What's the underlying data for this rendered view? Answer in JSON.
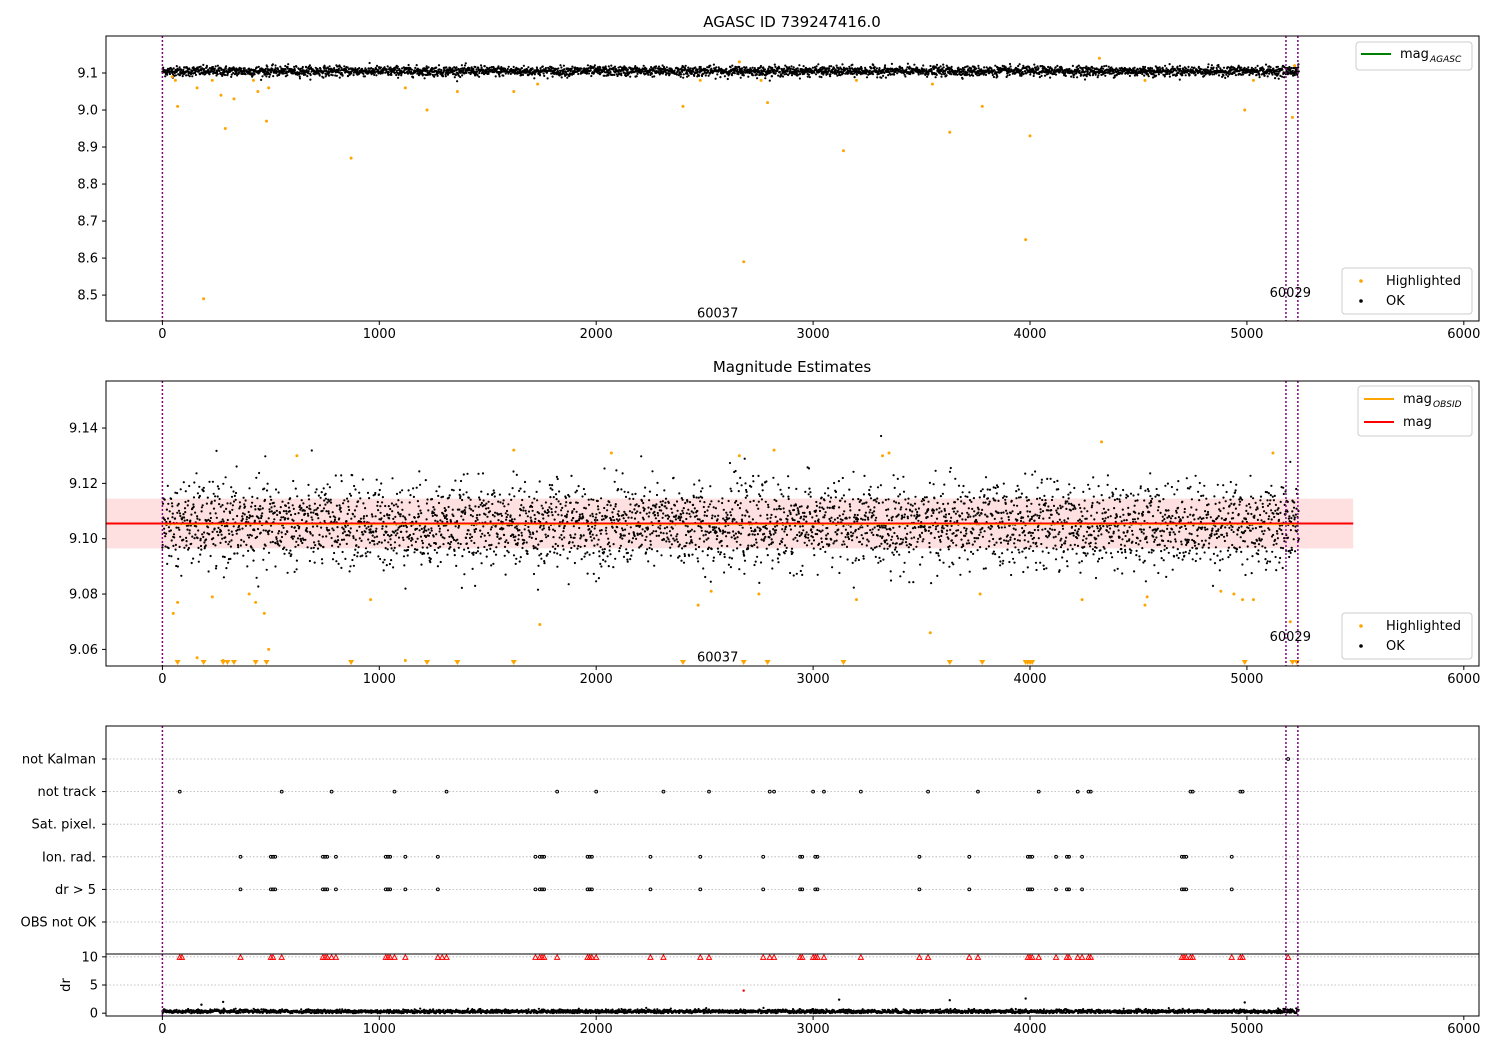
{
  "colors": {
    "ok": "#000000",
    "highlighted": "#ffa500",
    "mag_agasc": "#008000",
    "mag_obsid": "#ffa500",
    "mag": "#ff0000",
    "band_fill": "#ff0000",
    "obs_marker": "#800080",
    "flag_dr10": "#ff0000",
    "grid": "#b0b0b0"
  },
  "chart_data": [
    {
      "type": "scatter",
      "title": "AGASC ID 739247416.0",
      "xlabel": "",
      "ylabel": "",
      "xlim": [
        -260,
        6070
      ],
      "ylim": [
        8.43,
        9.2
      ],
      "xticks": [
        0,
        1000,
        2000,
        3000,
        4000,
        5000,
        6000
      ],
      "yticks": [
        8.5,
        8.6,
        8.7,
        8.8,
        8.9,
        9.0,
        9.1
      ],
      "ytick_labels": [
        "8.5",
        "8.6",
        "8.7",
        "8.8",
        "8.9",
        "9.0",
        "9.1"
      ],
      "legend": [
        {
          "label": "mag",
          "sub": "AGASC",
          "kind": "line",
          "color": "#008000",
          "placement": "top-right"
        },
        {
          "label": "Highlighted",
          "kind": "dot",
          "color": "#ffa500",
          "placement": "lower-right"
        },
        {
          "label": "OK",
          "kind": "dot",
          "color": "#000000",
          "placement": "lower-right"
        }
      ],
      "ok_band": {
        "x_range": [
          0,
          5240
        ],
        "center": 9.105,
        "spread": 0.015
      },
      "obs_boundaries": [
        0,
        5180,
        5235
      ],
      "annotations": [
        {
          "text": "60037",
          "x": 2560,
          "y": 8.45
        },
        {
          "text": "60029",
          "x": 5200,
          "y": 8.505
        }
      ],
      "highlighted_points": [
        [
          45,
          9.09
        ],
        [
          60,
          9.08
        ],
        [
          70,
          9.01
        ],
        [
          160,
          9.06
        ],
        [
          190,
          8.49
        ],
        [
          230,
          9.08
        ],
        [
          270,
          9.04
        ],
        [
          290,
          8.95
        ],
        [
          330,
          9.03
        ],
        [
          420,
          9.08
        ],
        [
          440,
          9.05
        ],
        [
          480,
          8.97
        ],
        [
          490,
          9.06
        ],
        [
          870,
          8.87
        ],
        [
          1120,
          9.06
        ],
        [
          1220,
          9.0
        ],
        [
          1360,
          9.05
        ],
        [
          1620,
          9.05
        ],
        [
          1730,
          9.07
        ],
        [
          2400,
          9.01
        ],
        [
          2480,
          9.08
        ],
        [
          2660,
          9.13
        ],
        [
          2680,
          8.59
        ],
        [
          2760,
          9.08
        ],
        [
          2790,
          9.02
        ],
        [
          3140,
          8.89
        ],
        [
          3200,
          9.08
        ],
        [
          3550,
          9.07
        ],
        [
          3630,
          8.94
        ],
        [
          3780,
          9.01
        ],
        [
          3980,
          8.65
        ],
        [
          4000,
          8.93
        ],
        [
          4320,
          9.14
        ],
        [
          4530,
          9.08
        ],
        [
          4990,
          9.0
        ],
        [
          5030,
          9.08
        ],
        [
          5210,
          8.98
        ],
        [
          5220,
          9.12
        ]
      ]
    },
    {
      "type": "scatter",
      "title": "Magnitude Estimates",
      "xlabel": "",
      "ylabel": "",
      "xlim": [
        -260,
        6070
      ],
      "ylim": [
        9.054,
        9.157
      ],
      "xticks": [
        0,
        1000,
        2000,
        3000,
        4000,
        5000,
        6000
      ],
      "yticks": [
        9.06,
        9.08,
        9.1,
        9.12,
        9.14
      ],
      "ytick_labels": [
        "9.06",
        "9.08",
        "9.10",
        "9.12",
        "9.14"
      ],
      "legend": [
        {
          "label": "mag",
          "sub": "OBSID",
          "kind": "line",
          "color": "#ffa500",
          "placement": "top-right"
        },
        {
          "label": "mag",
          "sub": "",
          "kind": "line",
          "color": "#ff0000",
          "placement": "top-right"
        },
        {
          "label": "Highlighted",
          "kind": "dot",
          "color": "#ffa500",
          "placement": "lower-right"
        },
        {
          "label": "OK",
          "kind": "dot",
          "color": "#000000",
          "placement": "lower-right"
        }
      ],
      "mag_line": {
        "x_range": [
          -260,
          5490
        ],
        "value": 9.1055
      },
      "mag_band": {
        "x_range": [
          -260,
          5490
        ],
        "low": 9.0965,
        "high": 9.1145
      },
      "mag_obsid_line": {
        "x_range": [
          0,
          5240
        ],
        "value": 9.1055
      },
      "ok_band": {
        "x_range": [
          0,
          5240
        ],
        "center": 9.105,
        "spread": 0.01
      },
      "obs_boundaries": [
        0,
        5180,
        5235
      ],
      "annotations": [
        {
          "text": "60037",
          "x": 2560,
          "y": 9.057
        },
        {
          "text": "60029",
          "x": 5200,
          "y": 9.0645
        }
      ],
      "highlighted_points": [
        [
          50,
          9.073
        ],
        [
          70,
          9.077
        ],
        [
          160,
          9.057
        ],
        [
          230,
          9.079
        ],
        [
          280,
          9.056
        ],
        [
          400,
          9.08
        ],
        [
          430,
          9.077
        ],
        [
          470,
          9.073
        ],
        [
          490,
          9.06
        ],
        [
          620,
          9.13
        ],
        [
          960,
          9.078
        ],
        [
          1120,
          9.056
        ],
        [
          1620,
          9.132
        ],
        [
          1740,
          9.069
        ],
        [
          2070,
          9.131
        ],
        [
          2470,
          9.076
        ],
        [
          2530,
          9.081
        ],
        [
          2660,
          9.13
        ],
        [
          2750,
          9.08
        ],
        [
          2820,
          9.132
        ],
        [
          3200,
          9.078
        ],
        [
          3320,
          9.13
        ],
        [
          3350,
          9.131
        ],
        [
          3540,
          9.066
        ],
        [
          3770,
          9.08
        ],
        [
          4240,
          9.078
        ],
        [
          4330,
          9.135
        ],
        [
          4530,
          9.076
        ],
        [
          4540,
          9.079
        ],
        [
          4880,
          9.081
        ],
        [
          4940,
          9.08
        ],
        [
          4980,
          9.078
        ],
        [
          5030,
          9.078
        ],
        [
          5120,
          9.131
        ],
        [
          5200,
          9.07
        ]
      ],
      "below_range_markers": [
        70,
        190,
        280,
        300,
        330,
        430,
        480,
        870,
        1220,
        1360,
        1620,
        2400,
        2680,
        2790,
        3140,
        3630,
        3780,
        3980,
        3990,
        4000,
        4010,
        4990,
        5210,
        5230
      ]
    },
    {
      "type": "scatter",
      "title": "",
      "xlabel": "",
      "ylabel": "",
      "xlim": [
        -260,
        6070
      ],
      "categories": [
        "not Kalman",
        "not track",
        "Sat. pixel.",
        "Ion. rad.",
        "dr > 5",
        "OBS not OK"
      ],
      "obs_boundaries": [
        0,
        5180,
        5235
      ],
      "flag_points": {
        "not Kalman": [
          5190
        ],
        "not track": [
          80,
          550,
          780,
          1070,
          1310,
          1820,
          2000,
          2310,
          2520,
          2800,
          2820,
          3000,
          3050,
          3220,
          3530,
          3760,
          4040,
          4220,
          4270,
          4280,
          4740,
          4750,
          4970,
          4980
        ],
        "Sat. pixel.": [],
        "Ion. rad.": [
          360,
          500,
          510,
          520,
          740,
          750,
          760,
          800,
          1030,
          1040,
          1050,
          1120,
          1270,
          1720,
          1740,
          1750,
          1760,
          1960,
          1970,
          1980,
          2250,
          2480,
          2770,
          2940,
          2950,
          3010,
          3020,
          3490,
          3720,
          3990,
          4000,
          4010,
          4120,
          4170,
          4180,
          4240,
          4700,
          4710,
          4720,
          4930
        ],
        "dr > 5": [
          360,
          500,
          510,
          520,
          740,
          750,
          760,
          800,
          1030,
          1040,
          1050,
          1120,
          1270,
          1720,
          1740,
          1750,
          1760,
          1960,
          1970,
          1980,
          2250,
          2480,
          2770,
          2940,
          2950,
          3010,
          3020,
          3490,
          3720,
          3990,
          4000,
          4010,
          4120,
          4170,
          4180,
          4240,
          4700,
          4710,
          4720,
          4930
        ],
        "OBS not OK": []
      }
    },
    {
      "type": "scatter",
      "title": "",
      "xlabel": "",
      "ylabel": "dr",
      "xlim": [
        -260,
        6070
      ],
      "ylim": [
        -0.5,
        10.5
      ],
      "xticks": [
        0,
        1000,
        2000,
        3000,
        4000,
        5000,
        6000
      ],
      "yticks": [
        0,
        5,
        10
      ],
      "ytick_labels": [
        "0",
        "5",
        "10"
      ],
      "obs_boundaries": [
        0,
        5180,
        5235
      ],
      "ok_band": {
        "x_range": [
          0,
          5240
        ],
        "center": 0.3,
        "spread": 0.3
      },
      "clipped_points_at_10": [
        80,
        90,
        360,
        500,
        510,
        550,
        740,
        750,
        760,
        780,
        800,
        1030,
        1040,
        1050,
        1070,
        1120,
        1270,
        1290,
        1310,
        1720,
        1740,
        1750,
        1760,
        1820,
        1960,
        1970,
        1980,
        2000,
        2250,
        2310,
        2480,
        2520,
        2770,
        2800,
        2820,
        2940,
        2950,
        3000,
        3010,
        3020,
        3050,
        3220,
        3490,
        3530,
        3720,
        3760,
        3990,
        4000,
        4010,
        4040,
        4120,
        4170,
        4180,
        4220,
        4240,
        4270,
        4280,
        4700,
        4710,
        4720,
        4740,
        4750,
        4930,
        4970,
        4980,
        5190
      ],
      "outlier_points": [
        [
          180,
          1.5
        ],
        [
          280,
          2.0
        ],
        [
          2680,
          4.0
        ],
        [
          3120,
          2.4
        ],
        [
          3630,
          2.3
        ],
        [
          3980,
          2.6
        ],
        [
          4990,
          1.9
        ]
      ]
    }
  ]
}
